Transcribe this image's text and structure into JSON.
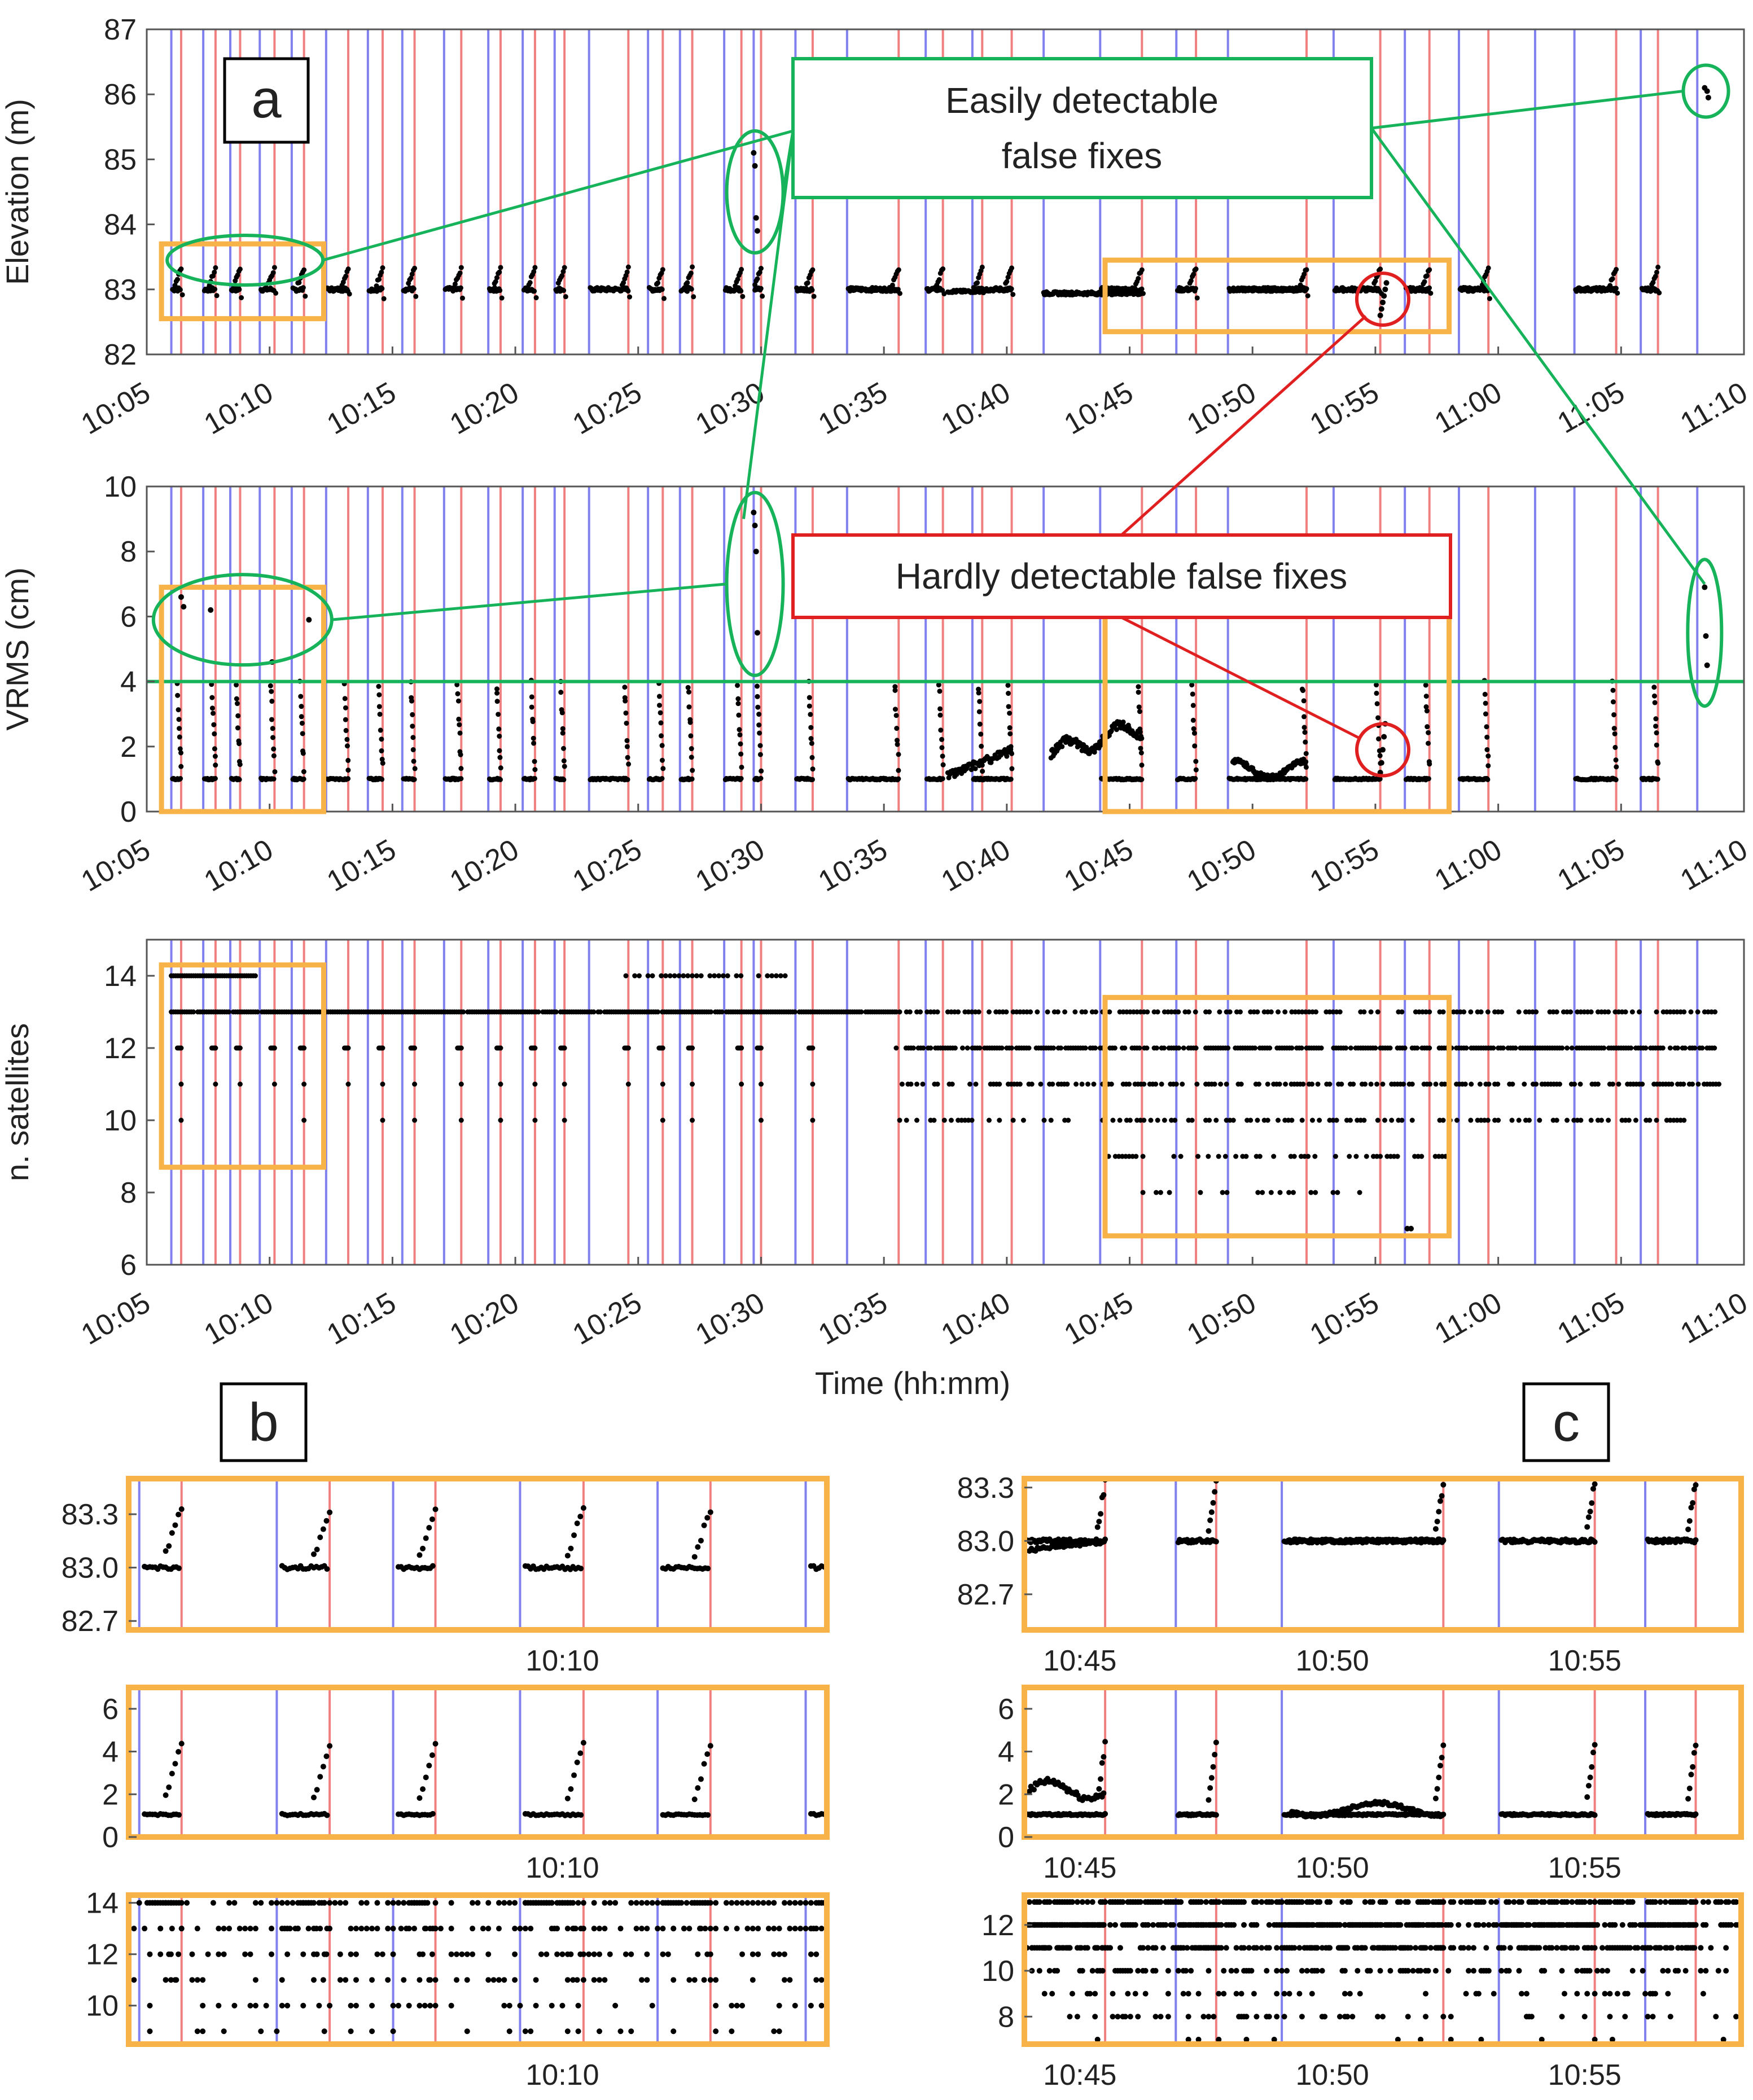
{
  "figure": {
    "panel_labels": {
      "a": "a",
      "b": "b",
      "c": "c"
    },
    "callouts": {
      "easy": {
        "line1": "Easily detectable",
        "line2": "false fixes"
      },
      "hard": "Hardly detectable false fixes"
    },
    "time_label": "Time (hh:mm)"
  },
  "colors": {
    "red_line": "#f08080",
    "blue_line": "#8080ee",
    "orange": "#f7b347",
    "green": "#16b35a",
    "red": "#e02020",
    "point": "#000000",
    "axis": "#555555"
  },
  "chart_data": [
    {
      "id": "elevation",
      "type": "scatter",
      "ylabel": "Elevation (m)",
      "xlim": [
        5,
        70
      ],
      "ylim": [
        82,
        87
      ],
      "yticks": [
        82,
        83,
        84,
        85,
        86,
        87
      ],
      "xticks": [
        "10:05",
        "10:10",
        "10:15",
        "10:20",
        "10:25",
        "10:30",
        "10:35",
        "10:40",
        "10:45",
        "10:50",
        "10:55",
        "11:00",
        "11:05",
        "11:10"
      ],
      "baseline": 83.0,
      "false_fix_points": [
        [
          29.7,
          85.1
        ],
        [
          29.75,
          84.9
        ],
        [
          29.8,
          84.1
        ],
        [
          29.85,
          83.9
        ],
        [
          68.4,
          86.1
        ],
        [
          68.5,
          86.05
        ],
        [
          68.55,
          85.95
        ]
      ],
      "hard_false_points": [
        [
          55.2,
          82.6
        ],
        [
          55.25,
          82.7
        ],
        [
          55.3,
          82.8
        ],
        [
          55.35,
          82.9
        ],
        [
          55.4,
          83.0
        ],
        [
          55.45,
          83.1
        ]
      ]
    },
    {
      "id": "vrms",
      "type": "scatter",
      "ylabel": "VRMS (cm)",
      "xlim": [
        5,
        70
      ],
      "ylim": [
        0,
        10
      ],
      "yticks": [
        0,
        2,
        4,
        6,
        8,
        10
      ],
      "xticks": [
        "10:05",
        "10:10",
        "10:15",
        "10:20",
        "10:25",
        "10:30",
        "10:35",
        "10:40",
        "10:45",
        "10:50",
        "10:55",
        "11:00",
        "11:05",
        "11:10"
      ],
      "threshold": 4,
      "baseline": 1.0,
      "false_fix_points": [
        [
          29.7,
          9.2
        ],
        [
          29.75,
          8.8
        ],
        [
          29.8,
          8.0
        ],
        [
          29.85,
          5.5
        ],
        [
          6.4,
          6.6
        ],
        [
          6.5,
          6.3
        ],
        [
          7.6,
          6.2
        ],
        [
          11.6,
          5.9
        ],
        [
          10.1,
          4.6
        ],
        [
          68.4,
          6.9
        ],
        [
          68.45,
          5.4
        ],
        [
          68.5,
          4.5
        ]
      ],
      "hard_false_points": [
        [
          55.2,
          1.2
        ],
        [
          55.25,
          1.5
        ],
        [
          55.3,
          1.9
        ],
        [
          55.35,
          2.3
        ],
        [
          55.4,
          2.7
        ]
      ]
    },
    {
      "id": "satellites",
      "type": "scatter",
      "ylabel": "n. satellites",
      "xlabel": "Time (hh:mm)",
      "xlim": [
        5,
        70
      ],
      "ylim": [
        6,
        15
      ],
      "yticks": [
        6,
        8,
        10,
        12,
        14
      ],
      "xticks": [
        "10:05",
        "10:10",
        "10:15",
        "10:20",
        "10:25",
        "10:30",
        "10:35",
        "10:40",
        "10:45",
        "10:50",
        "10:55",
        "11:00",
        "11:05",
        "11:10"
      ],
      "levels": [
        13,
        12,
        11,
        10,
        9,
        14,
        8,
        7
      ]
    },
    {
      "id": "zoom_b_elev",
      "type": "scatter",
      "xlim": [
        5.9,
        12.5
      ],
      "ylim": [
        82.65,
        83.5
      ],
      "yticks": [
        82.7,
        83.0,
        83.3
      ],
      "ytick_labels": [
        "82.7",
        "83.0",
        "83.3"
      ],
      "xtick_values": [
        10
      ],
      "xtick_labels": [
        "10:10"
      ]
    },
    {
      "id": "zoom_b_vrms",
      "type": "scatter",
      "xlim": [
        5.9,
        12.5
      ],
      "ylim": [
        0,
        7
      ],
      "yticks": [
        0,
        2,
        4,
        6
      ],
      "ytick_labels": [
        "0",
        "2",
        "4",
        "6"
      ],
      "xtick_values": [
        10
      ],
      "xtick_labels": [
        "10:10"
      ]
    },
    {
      "id": "zoom_b_sats",
      "type": "scatter",
      "xlim": [
        5.9,
        12.5
      ],
      "ylim": [
        8.5,
        14.3
      ],
      "yticks": [
        10,
        12,
        14
      ],
      "ytick_labels": [
        "10",
        "12",
        "14"
      ],
      "xtick_values": [
        10
      ],
      "xtick_labels": [
        "10:10"
      ]
    },
    {
      "id": "zoom_c_elev",
      "type": "scatter",
      "xlim": [
        43.9,
        58.1
      ],
      "ylim": [
        82.5,
        83.35
      ],
      "yticks": [
        82.7,
        83.0,
        83.3
      ],
      "ytick_labels": [
        "82.7",
        "83.0",
        "83.3"
      ],
      "xtick_values": [
        45,
        50,
        55
      ],
      "xtick_labels": [
        "10:45",
        "10:50",
        "10:55"
      ]
    },
    {
      "id": "zoom_c_vrms",
      "type": "scatter",
      "xlim": [
        43.9,
        58.1
      ],
      "ylim": [
        0,
        7
      ],
      "yticks": [
        0,
        2,
        4,
        6
      ],
      "ytick_labels": [
        "0",
        "2",
        "4",
        "6"
      ],
      "xtick_values": [
        45,
        50,
        55
      ],
      "xtick_labels": [
        "10:45",
        "10:50",
        "10:55"
      ]
    },
    {
      "id": "zoom_c_sats",
      "type": "scatter",
      "xlim": [
        43.9,
        58.1
      ],
      "ylim": [
        6.8,
        13.3
      ],
      "yticks": [
        8,
        10,
        12
      ],
      "ytick_labels": [
        "8",
        "10",
        "12"
      ],
      "xtick_values": [
        45,
        50,
        55
      ],
      "xtick_labels": [
        "10:45",
        "10:50",
        "10:55"
      ]
    }
  ],
  "event_lines": {
    "red": [
      6.4,
      7.8,
      8.8,
      10.2,
      11.4,
      13.2,
      14.6,
      15.9,
      17.8,
      19.4,
      20.8,
      22.0,
      24.6,
      26.0,
      27.2,
      29.2,
      30.0,
      32.1,
      35.6,
      37.4,
      39.0,
      40.2,
      45.5,
      47.7,
      52.2,
      55.2,
      57.2,
      59.6,
      64.8,
      66.5
    ],
    "blue": [
      6.0,
      7.3,
      8.4,
      9.6,
      10.9,
      12.3,
      14.0,
      15.4,
      17.1,
      18.9,
      20.3,
      21.6,
      23.0,
      25.4,
      26.7,
      28.5,
      29.7,
      31.4,
      33.5,
      36.7,
      38.6,
      41.5,
      43.8,
      46.9,
      49.0,
      53.3,
      56.2,
      58.4,
      61.5,
      63.1,
      65.8,
      68.1
    ]
  }
}
